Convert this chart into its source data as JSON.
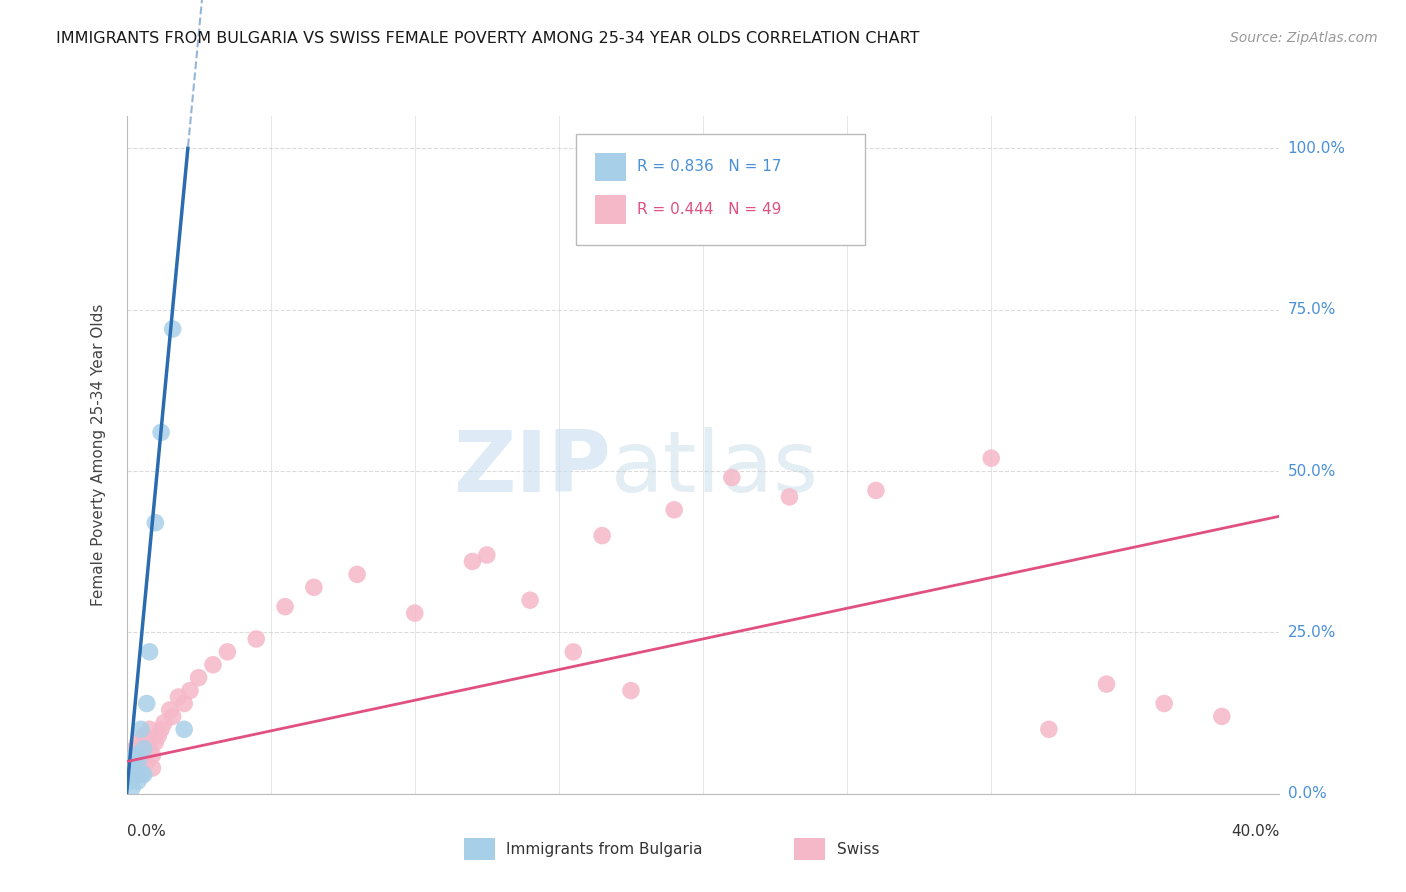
{
  "title": "IMMIGRANTS FROM BULGARIA VS SWISS FEMALE POVERTY AMONG 25-34 YEAR OLDS CORRELATION CHART",
  "source": "Source: ZipAtlas.com",
  "ylabel": "Female Poverty Among 25-34 Year Olds",
  "ytick_labels": [
    "0.0%",
    "25.0%",
    "50.0%",
    "75.0%",
    "100.0%"
  ],
  "ytick_vals": [
    0.0,
    0.25,
    0.5,
    0.75,
    1.0
  ],
  "xlim": [
    0.0,
    0.4
  ],
  "ylim": [
    0.0,
    1.05
  ],
  "legend1_R": "0.836",
  "legend1_N": "17",
  "legend2_R": "0.444",
  "legend2_N": "49",
  "color_blue": "#a8cfe8",
  "color_pink": "#f5b8c8",
  "line_blue": "#2b6cb0",
  "line_pink": "#e05080",
  "watermark_zip": "ZIP",
  "watermark_atlas": "atlas",
  "bg_color": "#ffffff",
  "grid_color": "#cccccc",
  "bulgaria_x": [
    0.001,
    0.002,
    0.002,
    0.003,
    0.003,
    0.004,
    0.004,
    0.005,
    0.005,
    0.006,
    0.006,
    0.007,
    0.008,
    0.01,
    0.012,
    0.016,
    0.02
  ],
  "bulgaria_y": [
    0.02,
    0.04,
    0.01,
    0.03,
    0.06,
    0.05,
    0.02,
    0.03,
    0.1,
    0.07,
    0.03,
    0.14,
    0.22,
    0.42,
    0.56,
    0.72,
    0.1
  ],
  "swiss_x": [
    0.001,
    0.002,
    0.002,
    0.003,
    0.003,
    0.004,
    0.004,
    0.005,
    0.005,
    0.006,
    0.006,
    0.007,
    0.007,
    0.008,
    0.008,
    0.009,
    0.009,
    0.01,
    0.011,
    0.012,
    0.013,
    0.015,
    0.016,
    0.018,
    0.02,
    0.022,
    0.025,
    0.03,
    0.035,
    0.045,
    0.055,
    0.065,
    0.08,
    0.1,
    0.12,
    0.14,
    0.165,
    0.19,
    0.21,
    0.23,
    0.26,
    0.3,
    0.34,
    0.36,
    0.38,
    0.125,
    0.155,
    0.175,
    0.32
  ],
  "swiss_y": [
    0.04,
    0.05,
    0.03,
    0.07,
    0.04,
    0.08,
    0.05,
    0.06,
    0.03,
    0.09,
    0.06,
    0.05,
    0.08,
    0.1,
    0.07,
    0.06,
    0.04,
    0.08,
    0.09,
    0.1,
    0.11,
    0.13,
    0.12,
    0.15,
    0.14,
    0.16,
    0.18,
    0.2,
    0.22,
    0.24,
    0.29,
    0.32,
    0.34,
    0.28,
    0.36,
    0.3,
    0.4,
    0.44,
    0.49,
    0.46,
    0.47,
    0.52,
    0.17,
    0.14,
    0.12,
    0.37,
    0.22,
    0.16,
    0.1
  ],
  "blue_line_x0": 0.0,
  "blue_line_y0": 0.0,
  "blue_line_slope": 47.0,
  "pink_line_x0": 0.0,
  "pink_line_y0": 0.05,
  "pink_line_slope": 0.95
}
